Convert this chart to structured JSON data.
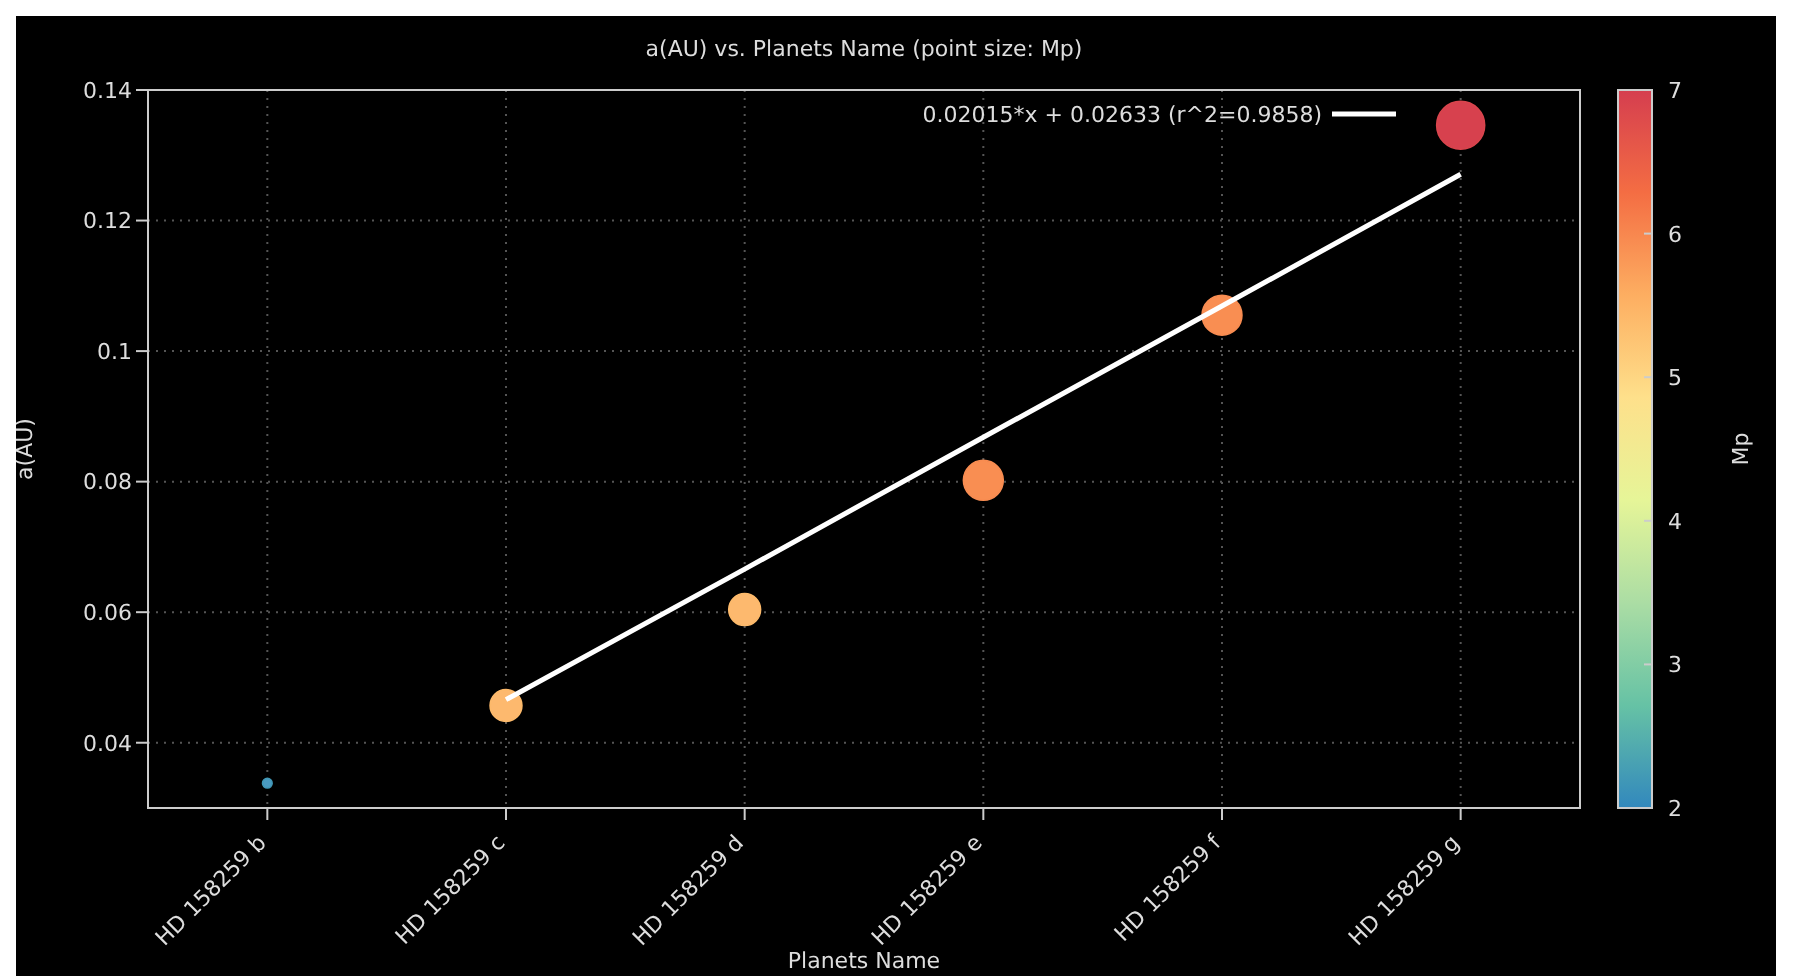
{
  "chart_data": {
    "type": "bubble",
    "title": "a(AU) vs. Planets Name (point size: Mp)",
    "xlabel": "Planets Name",
    "ylabel": "a(AU)",
    "clabel": "Mp",
    "categories": [
      "HD 158259 b",
      "HD 158259 c",
      "HD 158259 d",
      "HD 158259 e",
      "HD 158259 f",
      "HD 158259 g"
    ],
    "ylim": [
      0.03,
      0.14
    ],
    "yticks": [
      0.04,
      0.06,
      0.08,
      0.1,
      0.12,
      0.14
    ],
    "clim": [
      2,
      7
    ],
    "cticks": [
      2,
      3,
      4,
      5,
      6,
      7
    ],
    "grid": true,
    "legend": "top right",
    "series": [
      {
        "values": [
          0.0338,
          0.0457,
          0.0604,
          0.0802,
          0.1055,
          0.1346
        ],
        "sizes": [
          0.04,
          0.44,
          0.44,
          0.69,
          0.69,
          1
        ],
        "cvalues": [
          2.2,
          5.4,
          5.4,
          5.95,
          5.95,
          6.9
        ],
        "colors": [
          "#4a9ac0",
          "#fdb96e",
          "#fdb96e",
          "#f98e52",
          "#f98e52",
          "#d7414e"
        ]
      },
      {
        "type": "line",
        "name": "0.02015*x + 0.02633 (r^2=0.9858)",
        "color": "#ffffff",
        "x": [
          "HD 158259 c",
          "HD 158259 d",
          "HD 158259 e",
          "HD 158259 f",
          "HD 158259 g"
        ],
        "values": [
          0.0466,
          0.0666,
          0.0868,
          0.1069,
          0.1271
        ]
      }
    ]
  }
}
